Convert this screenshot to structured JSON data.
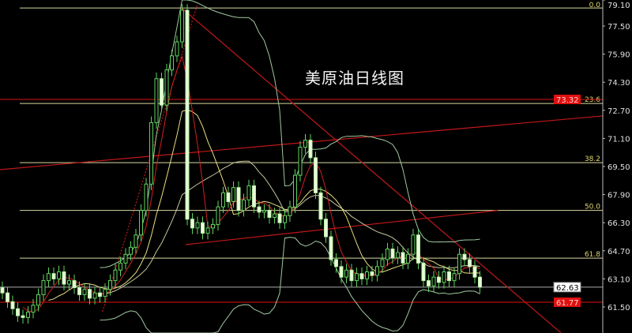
{
  "chart_data": {
    "type": "candlestick",
    "title": "美原油日线图",
    "y_axis": {
      "position": "right",
      "ticks": [
        "79.10",
        "77.50",
        "75.90",
        "74.30",
        "72.70",
        "71.10",
        "69.50",
        "67.90",
        "66.30",
        "64.70",
        "63.10",
        "61.50"
      ],
      "range": [
        59.9,
        79.5
      ]
    },
    "close": [
      62.3,
      61.8,
      61.4,
      61.0,
      60.9,
      61.2,
      61.6,
      62.2,
      63.0,
      63.4,
      63.1,
      63.5,
      62.8,
      63.0,
      62.6,
      62.2,
      62.5,
      62.0,
      62.3,
      62.1,
      62.5,
      63.0,
      63.6,
      64.0,
      64.5,
      64.9,
      65.6,
      67.0,
      68.5,
      72.0,
      74.5,
      73.0,
      75.0,
      75.8,
      76.6,
      78.4,
      66.5,
      66.0,
      66.3,
      65.7,
      66.0,
      66.2,
      67.2,
      68.0,
      67.5,
      68.3,
      67.0,
      67.6,
      68.4,
      67.2,
      66.9,
      67.0,
      66.6,
      66.8,
      66.3,
      66.7,
      67.2,
      69.0,
      70.6,
      71.0,
      70.0,
      68.0,
      66.5,
      65.5,
      64.2,
      63.8,
      63.2,
      63.6,
      63.0,
      63.4,
      63.1,
      63.5,
      63.3,
      63.8,
      64.2,
      64.8,
      64.3,
      64.6,
      64.0,
      64.5,
      65.6,
      64.0,
      63.0,
      62.7,
      63.2,
      62.9,
      63.5,
      63.0,
      63.4,
      64.5,
      64.2,
      63.8,
      63.2,
      62.63
    ],
    "fibonacci": [
      {
        "label": "0.0",
        "price": 78.53
      },
      {
        "label": "23.6",
        "price": 73.09
      },
      {
        "label": "38.2",
        "price": 69.72
      },
      {
        "label": "50.0",
        "price": 67.0
      },
      {
        "label": "61.8",
        "price": 64.28
      }
    ],
    "price_lines": [
      {
        "label": "73.32",
        "price": 73.32,
        "color": "#e01010"
      },
      {
        "label": "61.77",
        "price": 61.77,
        "color": "#e01010"
      },
      {
        "label": "62.63",
        "price": 62.63,
        "color": "#ffffff"
      }
    ],
    "trendlines": [
      {
        "from": [
          34.9,
          78.53
        ],
        "to": [
          108.8,
          60.02
        ],
        "style": "solid"
      },
      {
        "from": [
          -0.5,
          69.32
        ],
        "to": [
          116.9,
          72.38
        ],
        "style": "solid"
      },
      {
        "from": [
          35.7,
          65.05
        ],
        "to": [
          96.5,
          67.0
        ],
        "style": "solid"
      },
      {
        "from": [
          19.5,
          61.23
        ],
        "to": [
          38.0,
          78.76
        ],
        "style": "dotted"
      }
    ],
    "indicators": [
      "MA5",
      "MA10",
      "Bollinger(20)"
    ],
    "colors": {
      "background": "#000000",
      "candle_up": "#5fd35f",
      "candle_down": "#e8ffd8",
      "fib": "#d8d8a0",
      "trendline": "#c01818",
      "ma5": "#d02020",
      "ma10": "#e8e080",
      "bollinger": "#a0c8a0",
      "axis_text": "#e0e0e0"
    }
  }
}
